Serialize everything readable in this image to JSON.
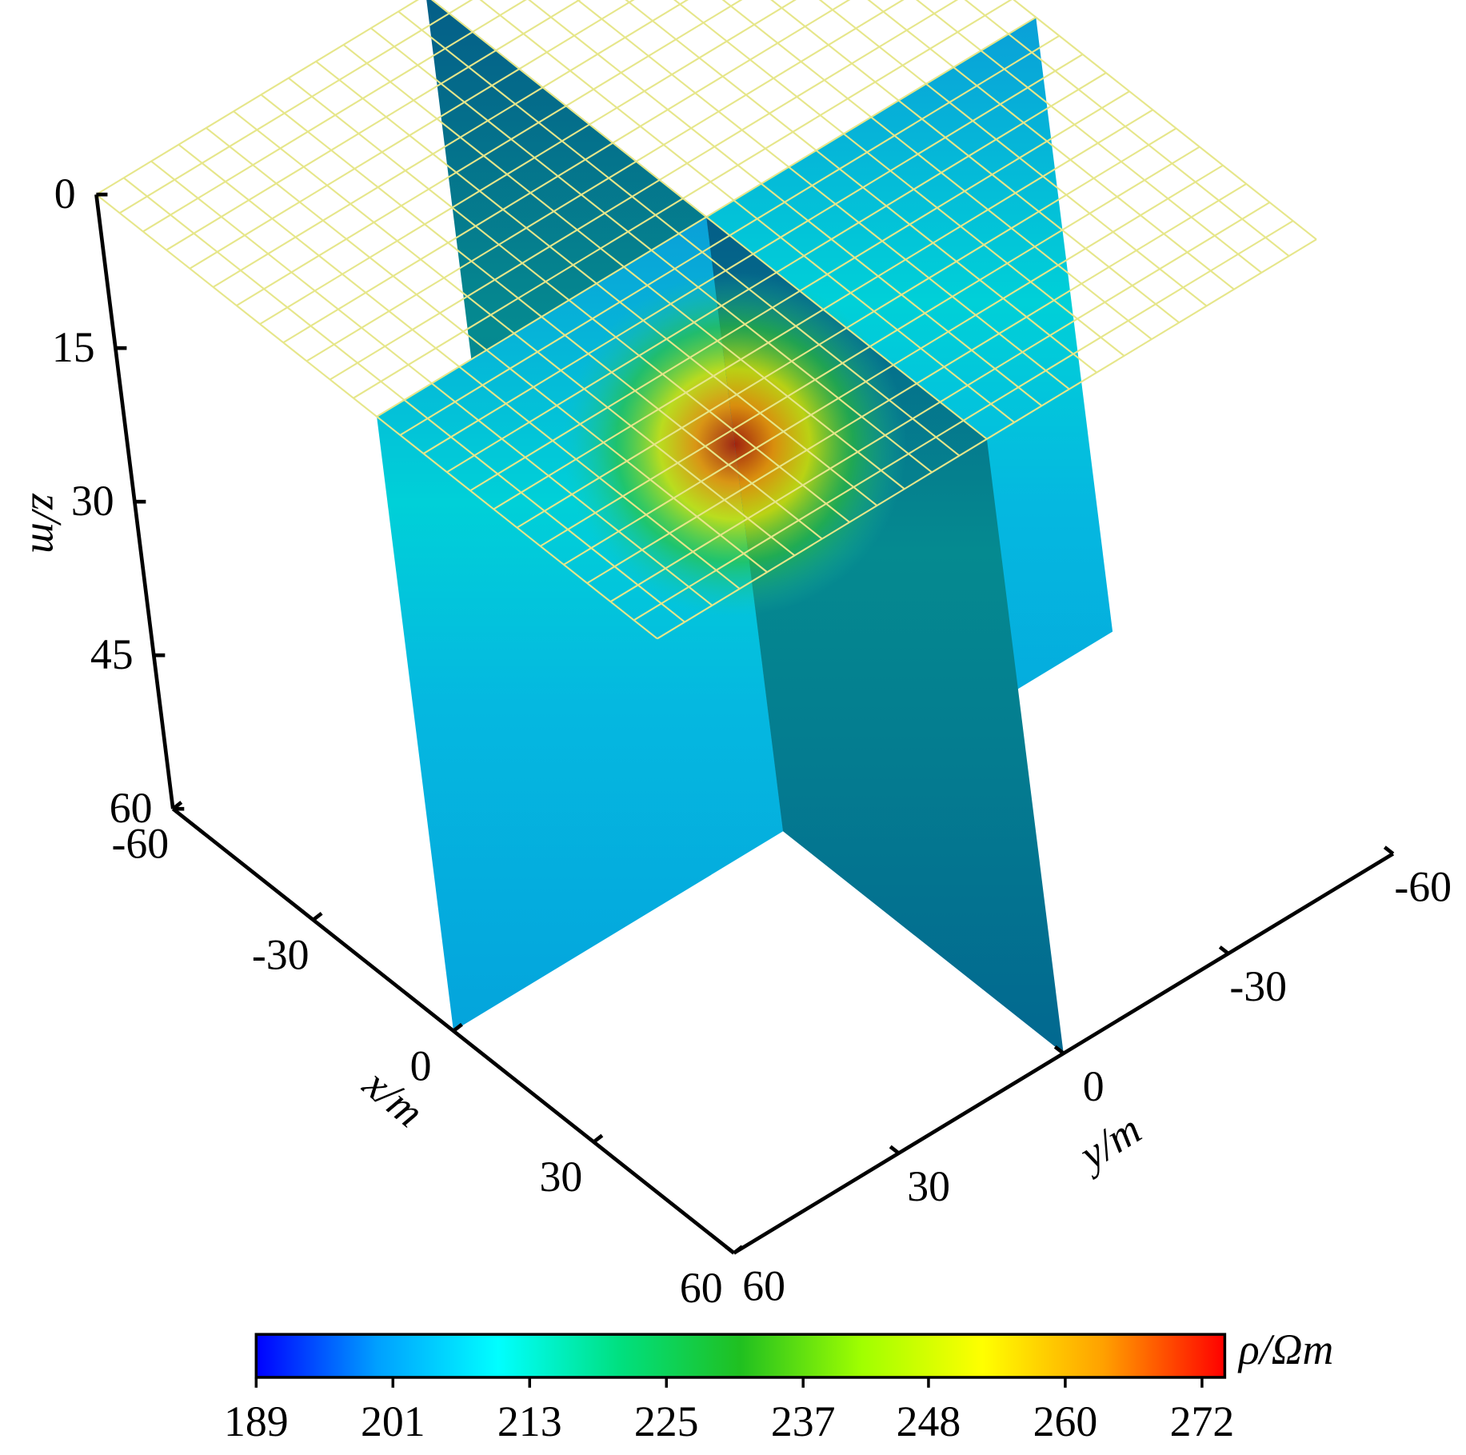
{
  "chart_data": {
    "type": "volume-slice",
    "xlabel": "x/m",
    "ylabel": "y/m",
    "zlabel": "z/m",
    "xlim": [
      -60,
      60
    ],
    "ylim": [
      -60,
      60
    ],
    "zlim": [
      0,
      60
    ],
    "xticks": [
      -60,
      -30,
      0,
      30,
      60
    ],
    "yticks": [
      -60,
      -30,
      0,
      30,
      60
    ],
    "zticks": [
      0,
      15,
      30,
      45,
      60
    ],
    "slices": [
      {
        "axis": "x",
        "value": 0
      },
      {
        "axis": "y",
        "value": 0
      },
      {
        "axis": "z",
        "value": 0
      }
    ],
    "colorbar": {
      "label": "ρ/Ωm",
      "clim": [
        189,
        274
      ],
      "ticks": [
        189,
        201,
        213,
        225,
        237,
        248,
        260,
        272
      ],
      "colormap": [
        "#0000ff",
        "#00a0ff",
        "#00ffff",
        "#00e080",
        "#20c020",
        "#a0ff00",
        "#ffff00",
        "#ffa000",
        "#ff0000"
      ]
    }
  }
}
